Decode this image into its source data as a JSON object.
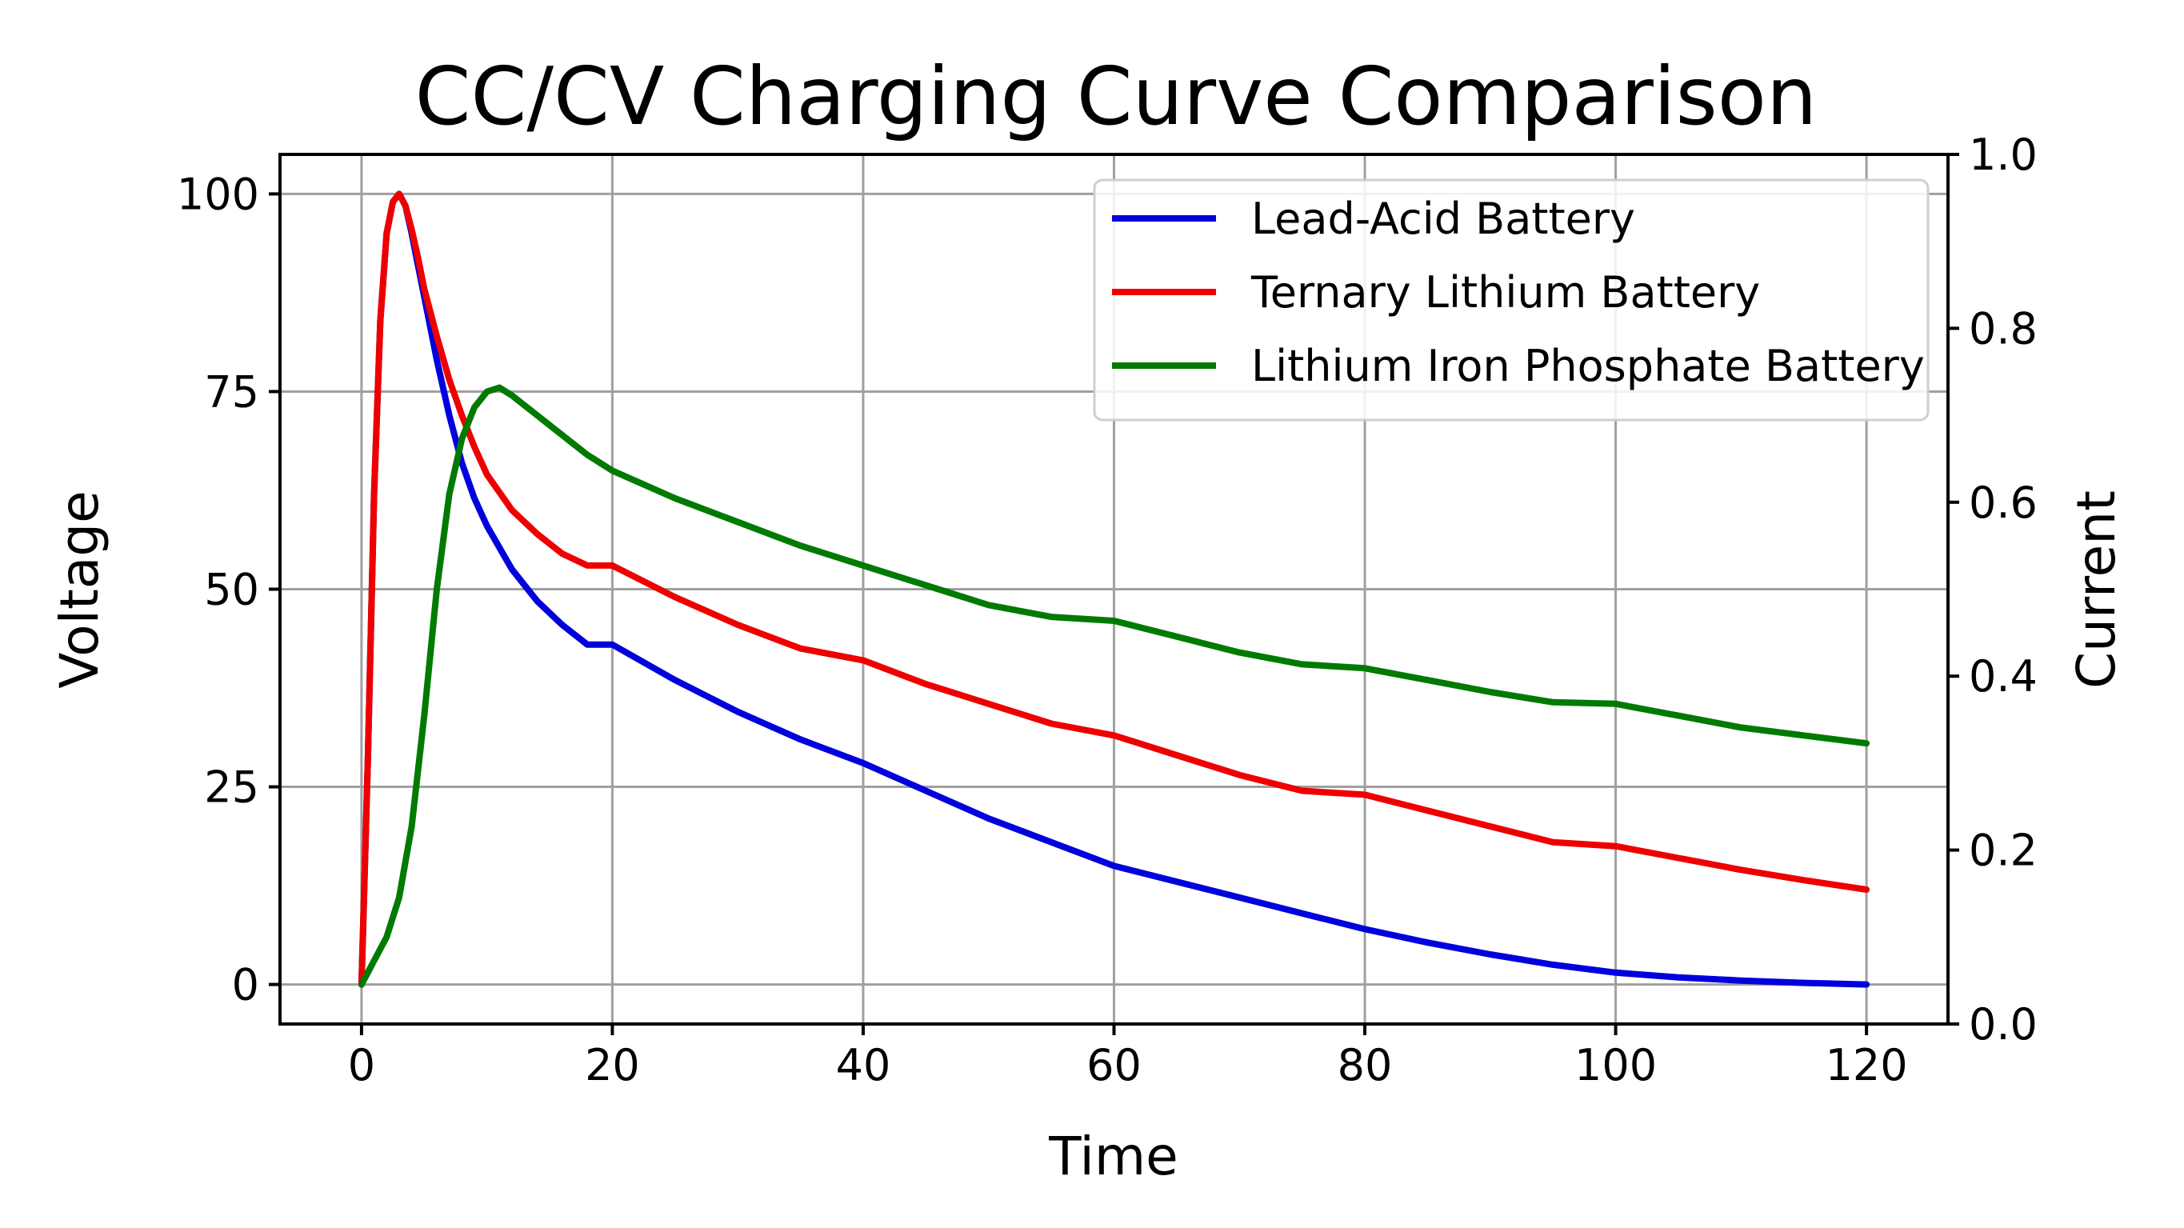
{
  "chart_data": {
    "type": "line",
    "title": "CC/CV Charging Curve Comparison",
    "xlabel": "Time",
    "ylabel": "Voltage",
    "y2label": "Current",
    "xlim": [
      -6.5,
      126.5
    ],
    "ylim": [
      -5,
      105
    ],
    "y2lim": [
      0.0,
      1.0
    ],
    "xticks": [
      0,
      20,
      40,
      60,
      80,
      100,
      120
    ],
    "xtick_labels": [
      "0",
      "20",
      "40",
      "60",
      "80",
      "100",
      "120"
    ],
    "yticks": [
      0,
      25,
      50,
      75,
      100
    ],
    "ytick_labels": [
      "0",
      "25",
      "50",
      "75",
      "100"
    ],
    "y2ticks": [
      0.0,
      0.2,
      0.4,
      0.6,
      0.8,
      1.0
    ],
    "y2tick_labels": [
      "0.0",
      "0.2",
      "0.4",
      "0.6",
      "0.8",
      "1.0"
    ],
    "grid": true,
    "legend_position": "top-right",
    "series": [
      {
        "name": "Lead-Acid Battery",
        "color": "#0000dd",
        "x": [
          0,
          0.5,
          1,
          1.5,
          2,
          2.5,
          3,
          3.5,
          4,
          4.5,
          5,
          6,
          7,
          8,
          9,
          10,
          12,
          14,
          16,
          18,
          20,
          25,
          30,
          35,
          40,
          45,
          50,
          55,
          60,
          65,
          70,
          75,
          80,
          85,
          90,
          95,
          100,
          105,
          110,
          115,
          120
        ],
        "y": [
          0,
          28,
          62,
          84,
          95,
          99,
          100,
          98.5,
          95,
          91,
          87,
          79,
          72,
          66,
          61.5,
          58,
          52.5,
          48.5,
          45.5,
          43,
          43,
          38.5,
          34.5,
          31,
          28,
          24.5,
          21,
          18,
          15,
          13,
          11,
          9,
          7,
          5.3,
          3.8,
          2.5,
          1.5,
          0.9,
          0.5,
          0.2,
          0
        ]
      },
      {
        "name": "Ternary Lithium Battery",
        "color": "#ee0000",
        "x": [
          0,
          0.5,
          1,
          1.5,
          2,
          2.5,
          3,
          3.5,
          4,
          4.5,
          5,
          6,
          7,
          8,
          9,
          10,
          12,
          14,
          16,
          18,
          20,
          25,
          30,
          35,
          40,
          45,
          50,
          55,
          60,
          65,
          70,
          75,
          80,
          85,
          90,
          95,
          100,
          105,
          110,
          115,
          120
        ],
        "y": [
          0,
          28,
          62,
          84,
          95,
          99,
          100,
          98.5,
          95.5,
          92,
          88,
          82,
          76.5,
          72,
          68,
          64.5,
          60,
          57,
          54.5,
          53,
          53,
          49,
          45.5,
          42.5,
          41,
          38,
          35.5,
          33,
          31.5,
          29,
          26.5,
          24.5,
          24,
          22,
          20,
          18,
          17.5,
          16,
          14.5,
          13.2,
          12
        ]
      },
      {
        "name": "Lithium Iron Phosphate Battery",
        "color": "#007a00",
        "x": [
          0,
          1,
          2,
          3,
          4,
          5,
          6,
          7,
          8,
          9,
          10,
          11,
          12,
          14,
          16,
          18,
          20,
          25,
          30,
          35,
          40,
          45,
          50,
          55,
          60,
          65,
          70,
          75,
          80,
          85,
          90,
          95,
          100,
          105,
          110,
          115,
          120
        ],
        "y": [
          0,
          3,
          6,
          11,
          20,
          34,
          50,
          62,
          69,
          73,
          75,
          75.5,
          74.5,
          72,
          69.5,
          67,
          65,
          61.5,
          58.5,
          55.5,
          53,
          50.5,
          48,
          46.5,
          46,
          44,
          42,
          40.5,
          40,
          38.5,
          37,
          35.7,
          35.5,
          34,
          32.5,
          31.5,
          30.5
        ]
      }
    ]
  }
}
